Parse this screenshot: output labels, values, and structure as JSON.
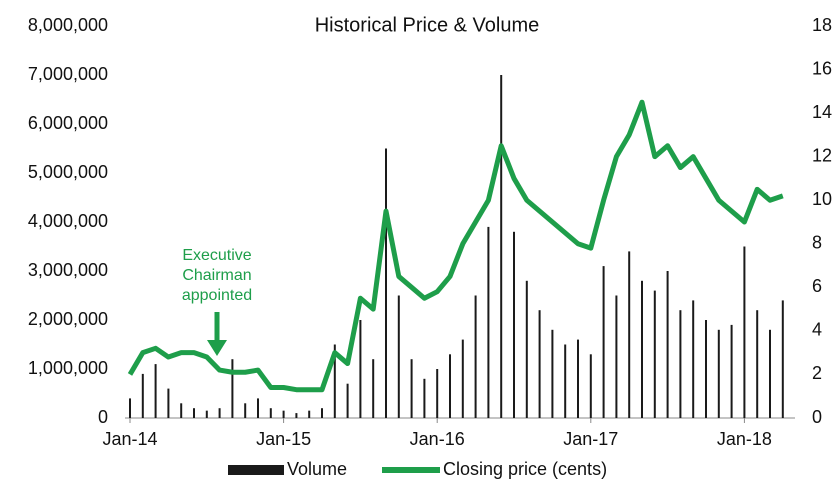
{
  "chart_data": {
    "type": "bar-line",
    "title": "Historical Price & Volume",
    "annotation": [
      "Executive",
      "Chairman",
      "appointed"
    ],
    "x": [
      "2014-01",
      "2014-02",
      "2014-03",
      "2014-04",
      "2014-05",
      "2014-06",
      "2014-07",
      "2014-08",
      "2014-09",
      "2014-10",
      "2014-11",
      "2014-12",
      "2015-01",
      "2015-02",
      "2015-03",
      "2015-04",
      "2015-05",
      "2015-06",
      "2015-07",
      "2015-08",
      "2015-09",
      "2015-10",
      "2015-11",
      "2015-12",
      "2016-01",
      "2016-02",
      "2016-03",
      "2016-04",
      "2016-05",
      "2016-06",
      "2016-07",
      "2016-08",
      "2016-09",
      "2016-10",
      "2016-11",
      "2016-12",
      "2017-01",
      "2017-02",
      "2017-03",
      "2017-04",
      "2017-05",
      "2017-06",
      "2017-07",
      "2017-08",
      "2017-09",
      "2017-10",
      "2017-11",
      "2017-12",
      "2018-01",
      "2018-02",
      "2018-03",
      "2018-04"
    ],
    "xticks": [
      {
        "value": "2014-01",
        "label": "Jan-14"
      },
      {
        "value": "2015-01",
        "label": "Jan-15"
      },
      {
        "value": "2016-01",
        "label": "Jan-16"
      },
      {
        "value": "2017-01",
        "label": "Jan-17"
      },
      {
        "value": "2018-01",
        "label": "Jan-18"
      }
    ],
    "series": [
      {
        "name": "Volume",
        "color": "#1a1a1a",
        "axis": "y",
        "values": [
          400000,
          900000,
          1100000,
          600000,
          300000,
          200000,
          150000,
          200000,
          1200000,
          300000,
          400000,
          200000,
          150000,
          100000,
          150000,
          200000,
          1500000,
          700000,
          2000000,
          1200000,
          5500000,
          2500000,
          1200000,
          800000,
          1000000,
          1300000,
          1600000,
          2500000,
          3900000,
          7000000,
          3800000,
          2800000,
          2200000,
          1800000,
          1500000,
          1600000,
          1300000,
          3100000,
          2500000,
          3400000,
          2800000,
          2600000,
          3000000,
          2200000,
          2400000,
          2000000,
          1800000,
          1900000,
          3500000,
          2200000,
          1800000,
          2400000
        ]
      },
      {
        "name": "Closing price (cents)",
        "color": "#1e9e4a",
        "axis": "y2",
        "values": [
          2,
          3,
          3.2,
          2.8,
          3,
          3,
          2.8,
          2.2,
          2.1,
          2.1,
          2.2,
          1.4,
          1.4,
          1.3,
          1.3,
          1.3,
          3,
          2.5,
          5.5,
          5,
          9.5,
          6.5,
          6,
          5.5,
          5.8,
          6.5,
          8,
          9,
          10,
          12.5,
          11,
          10,
          9.5,
          9,
          8.5,
          8,
          7.8,
          10,
          12,
          13,
          14.5,
          12,
          12.5,
          11.5,
          12,
          11,
          10,
          9.5,
          9,
          10.5,
          10,
          10.2
        ]
      }
    ],
    "ylim": [
      0,
      8000000
    ],
    "yticks": [
      0,
      {
        "value": 1000000,
        "label": "1,000,000"
      },
      {
        "value": 2000000,
        "label": "2,000,000"
      },
      {
        "value": 3000000,
        "label": "3,000,000"
      },
      {
        "value": 4000000,
        "label": "4,000,000"
      },
      {
        "value": 5000000,
        "label": "5,000,000"
      },
      {
        "value": 6000000,
        "label": "6,000,000"
      },
      {
        "value": 7000000,
        "label": "7,000,000"
      },
      {
        "value": 8000000,
        "label": "8,000,000"
      }
    ],
    "y2lim": [
      0,
      18
    ],
    "y2ticks": [
      0,
      2,
      4,
      6,
      8,
      10,
      12,
      14,
      16,
      18
    ],
    "grid": false,
    "legend": "bottom"
  }
}
